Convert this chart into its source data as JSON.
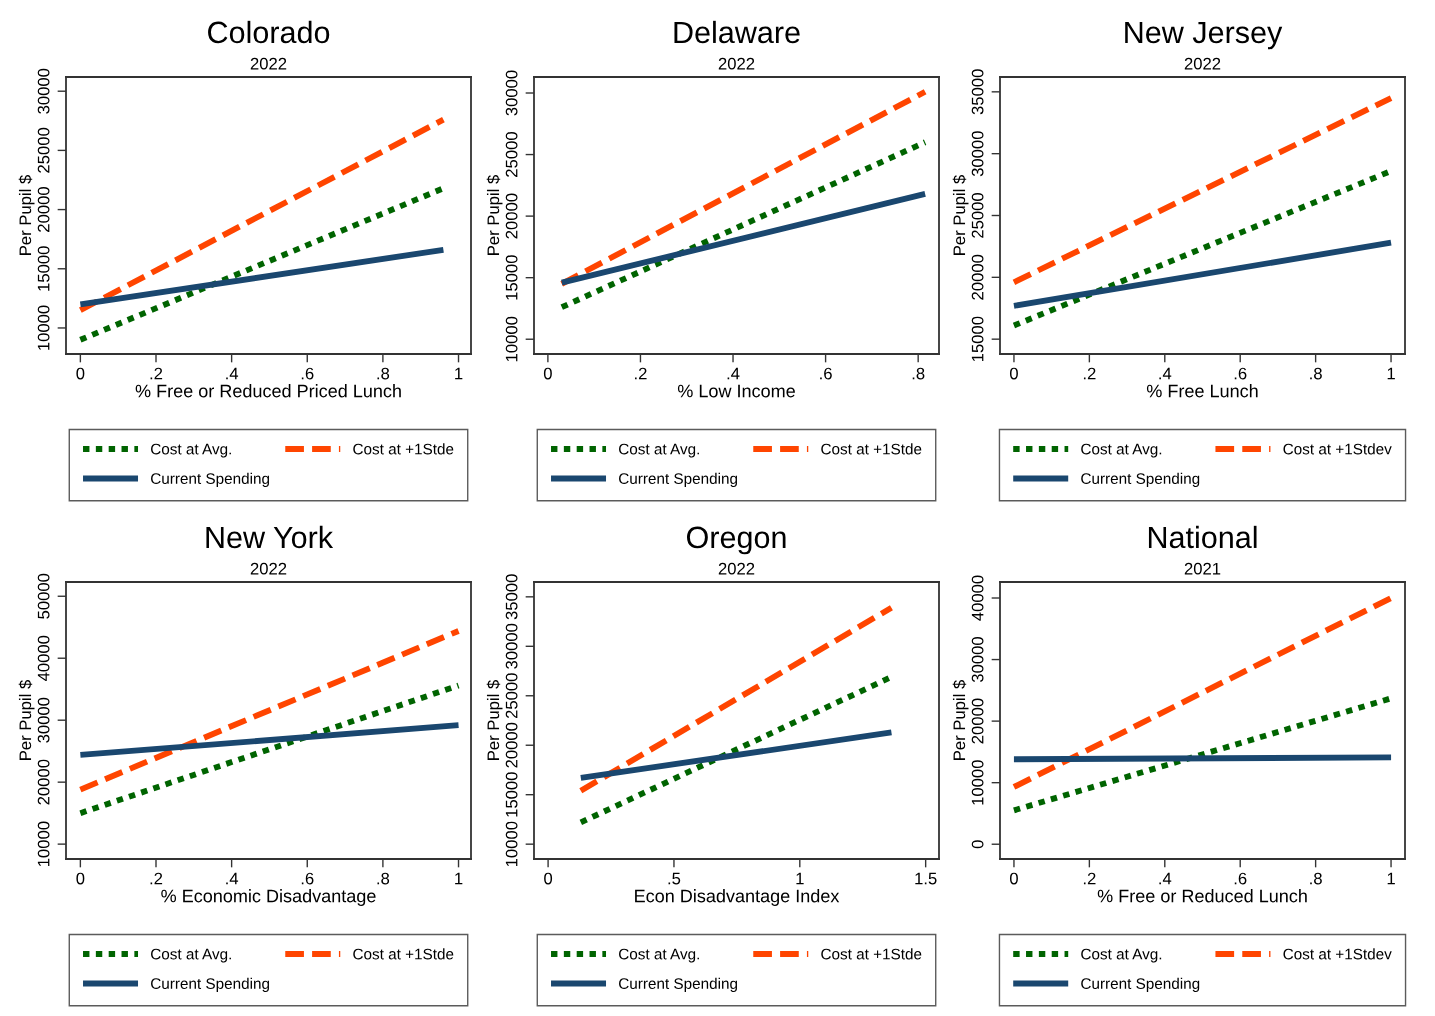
{
  "chart_data": [
    {
      "type": "line",
      "title": "Colorado",
      "subtitle": "2022",
      "xlabel": "% Free or Reduced Priced Lunch",
      "ylabel": "Per Pupil $",
      "xlim": [
        -0.038,
        1.033
      ],
      "xticks": [
        0,
        {
          "value": 0.2,
          "label": ".2"
        },
        {
          "value": 0.4,
          "label": ".4"
        },
        {
          "value": 0.6,
          "label": ".6"
        },
        {
          "value": 0.8,
          "label": ".8"
        },
        1
      ],
      "ylim": [
        7800,
        31200
      ],
      "yticks": [
        10000,
        15000,
        20000,
        25000,
        30000
      ],
      "grid": false,
      "legend": "bottom",
      "series": [
        {
          "name": "Cost at Avg.",
          "color": "#006400",
          "line_style": "dotted",
          "x": [
            0,
            0.96
          ],
          "values": [
            9000,
            21800
          ]
        },
        {
          "name": "Cost at +1Stde",
          "color": "#ff4500",
          "line_style": "dashed",
          "x": [
            0,
            0.96
          ],
          "values": [
            11500,
            27600
          ]
        },
        {
          "name": "Current Spending",
          "color": "#1a476f",
          "line_style": "solid",
          "x": [
            0,
            0.96
          ],
          "values": [
            12000,
            16600
          ]
        }
      ]
    },
    {
      "type": "line",
      "title": "Delaware",
      "subtitle": "2022",
      "xlabel": "% Low Income",
      "ylabel": "Per Pupil $",
      "xlim": [
        -0.03,
        0.845
      ],
      "xticks": [
        0,
        {
          "value": 0.2,
          "label": ".2"
        },
        {
          "value": 0.4,
          "label": ".4"
        },
        {
          "value": 0.6,
          "label": ".6"
        },
        {
          "value": 0.8,
          "label": ".8"
        }
      ],
      "ylim": [
        8800,
        31300
      ],
      "yticks": [
        10000,
        15000,
        20000,
        25000,
        30000
      ],
      "grid": false,
      "legend": "bottom",
      "series": [
        {
          "name": "Cost at Avg.",
          "color": "#006400",
          "line_style": "dotted",
          "x": [
            0.03,
            0.815
          ],
          "values": [
            12600,
            26000
          ]
        },
        {
          "name": "Cost at +1Stde",
          "color": "#ff4500",
          "line_style": "dashed",
          "x": [
            0.03,
            0.815
          ],
          "values": [
            14500,
            30100
          ]
        },
        {
          "name": "Current Spending",
          "color": "#1a476f",
          "line_style": "solid",
          "x": [
            0.03,
            0.815
          ],
          "values": [
            14600,
            21800
          ]
        }
      ]
    },
    {
      "type": "line",
      "title": "New Jersey",
      "subtitle": "2022",
      "xlabel": "% Free Lunch",
      "ylabel": "Per Pupil $",
      "xlim": [
        -0.037,
        1.037
      ],
      "xticks": [
        0,
        {
          "value": 0.2,
          "label": ".2"
        },
        {
          "value": 0.4,
          "label": ".4"
        },
        {
          "value": 0.6,
          "label": ".6"
        },
        {
          "value": 0.8,
          "label": ".8"
        },
        1
      ],
      "ylim": [
        13800,
        36200
      ],
      "yticks": [
        15000,
        20000,
        25000,
        30000,
        35000
      ],
      "grid": false,
      "legend": "bottom",
      "series": [
        {
          "name": "Cost at Avg.",
          "color": "#006400",
          "line_style": "dotted",
          "x": [
            0,
            1
          ],
          "values": [
            16100,
            28600
          ]
        },
        {
          "name": "Cost at +1Stdev",
          "color": "#ff4500",
          "line_style": "dashed",
          "x": [
            0,
            1
          ],
          "values": [
            19600,
            34500
          ]
        },
        {
          "name": "Current Spending",
          "color": "#1a476f",
          "line_style": "solid",
          "x": [
            0,
            1
          ],
          "values": [
            17700,
            22800
          ]
        }
      ]
    },
    {
      "type": "line",
      "title": "New York",
      "subtitle": "2022",
      "xlabel": "% Economic Disadvantage",
      "ylabel": "Per Pupil $",
      "xlim": [
        -0.038,
        1.033
      ],
      "xticks": [
        0,
        {
          "value": 0.2,
          "label": ".2"
        },
        {
          "value": 0.4,
          "label": ".4"
        },
        {
          "value": 0.6,
          "label": ".6"
        },
        {
          "value": 0.8,
          "label": ".8"
        },
        1
      ],
      "ylim": [
        7600,
        52300
      ],
      "yticks": [
        10000,
        20000,
        30000,
        40000,
        50000
      ],
      "grid": false,
      "legend": "bottom",
      "series": [
        {
          "name": "Cost at Avg.",
          "color": "#006400",
          "line_style": "dotted",
          "x": [
            0,
            1
          ],
          "values": [
            15000,
            35600
          ]
        },
        {
          "name": "Cost at +1Stde",
          "color": "#ff4500",
          "line_style": "dashed",
          "x": [
            0,
            1
          ],
          "values": [
            18800,
            44400
          ]
        },
        {
          "name": "Current Spending",
          "color": "#1a476f",
          "line_style": "solid",
          "x": [
            0,
            1
          ],
          "values": [
            24400,
            29200
          ]
        }
      ]
    },
    {
      "type": "line",
      "title": "Oregon",
      "subtitle": "2022",
      "xlabel": "Econ Disadvantage Index",
      "ylabel": "Per Pupil $",
      "xlim": [
        -0.056,
        1.553
      ],
      "xticks": [
        0,
        {
          "value": 0.5,
          "label": ".5"
        },
        1,
        1.5
      ],
      "ylim": [
        8500,
        36500
      ],
      "yticks": [
        10000,
        15000,
        20000,
        25000,
        30000,
        35000
      ],
      "grid": false,
      "legend": "bottom",
      "series": [
        {
          "name": "Cost at Avg.",
          "color": "#006400",
          "line_style": "dotted",
          "x": [
            0.13,
            1.364
          ],
          "values": [
            12200,
            26900
          ]
        },
        {
          "name": "Cost at +1Stde",
          "color": "#ff4500",
          "line_style": "dashed",
          "x": [
            0.13,
            1.364
          ],
          "values": [
            15400,
            33900
          ]
        },
        {
          "name": "Current Spending",
          "color": "#1a476f",
          "line_style": "solid",
          "x": [
            0.13,
            1.364
          ],
          "values": [
            16700,
            21300
          ]
        }
      ]
    },
    {
      "type": "line",
      "title": "National",
      "subtitle": "2021",
      "xlabel": "% Free or Reduced Lunch",
      "ylabel": "Per Pupil $",
      "xlim": [
        -0.037,
        1.037
      ],
      "xticks": [
        0,
        {
          "value": 0.2,
          "label": ".2"
        },
        {
          "value": 0.4,
          "label": ".4"
        },
        {
          "value": 0.6,
          "label": ".6"
        },
        {
          "value": 0.8,
          "label": ".8"
        },
        1
      ],
      "ylim": [
        -2400,
        42600
      ],
      "yticks": [
        0,
        10000,
        20000,
        30000,
        40000
      ],
      "grid": false,
      "legend": "bottom",
      "series": [
        {
          "name": "Cost at Avg.",
          "color": "#006400",
          "line_style": "dotted",
          "x": [
            0,
            1
          ],
          "values": [
            5500,
            23700
          ]
        },
        {
          "name": "Cost at +1Stdev",
          "color": "#ff4500",
          "line_style": "dashed",
          "x": [
            0,
            1
          ],
          "values": [
            9300,
            40000
          ]
        },
        {
          "name": "Current Spending",
          "color": "#1a476f",
          "line_style": "solid",
          "x": [
            0,
            1
          ],
          "values": [
            13800,
            14100
          ]
        }
      ]
    }
  ]
}
